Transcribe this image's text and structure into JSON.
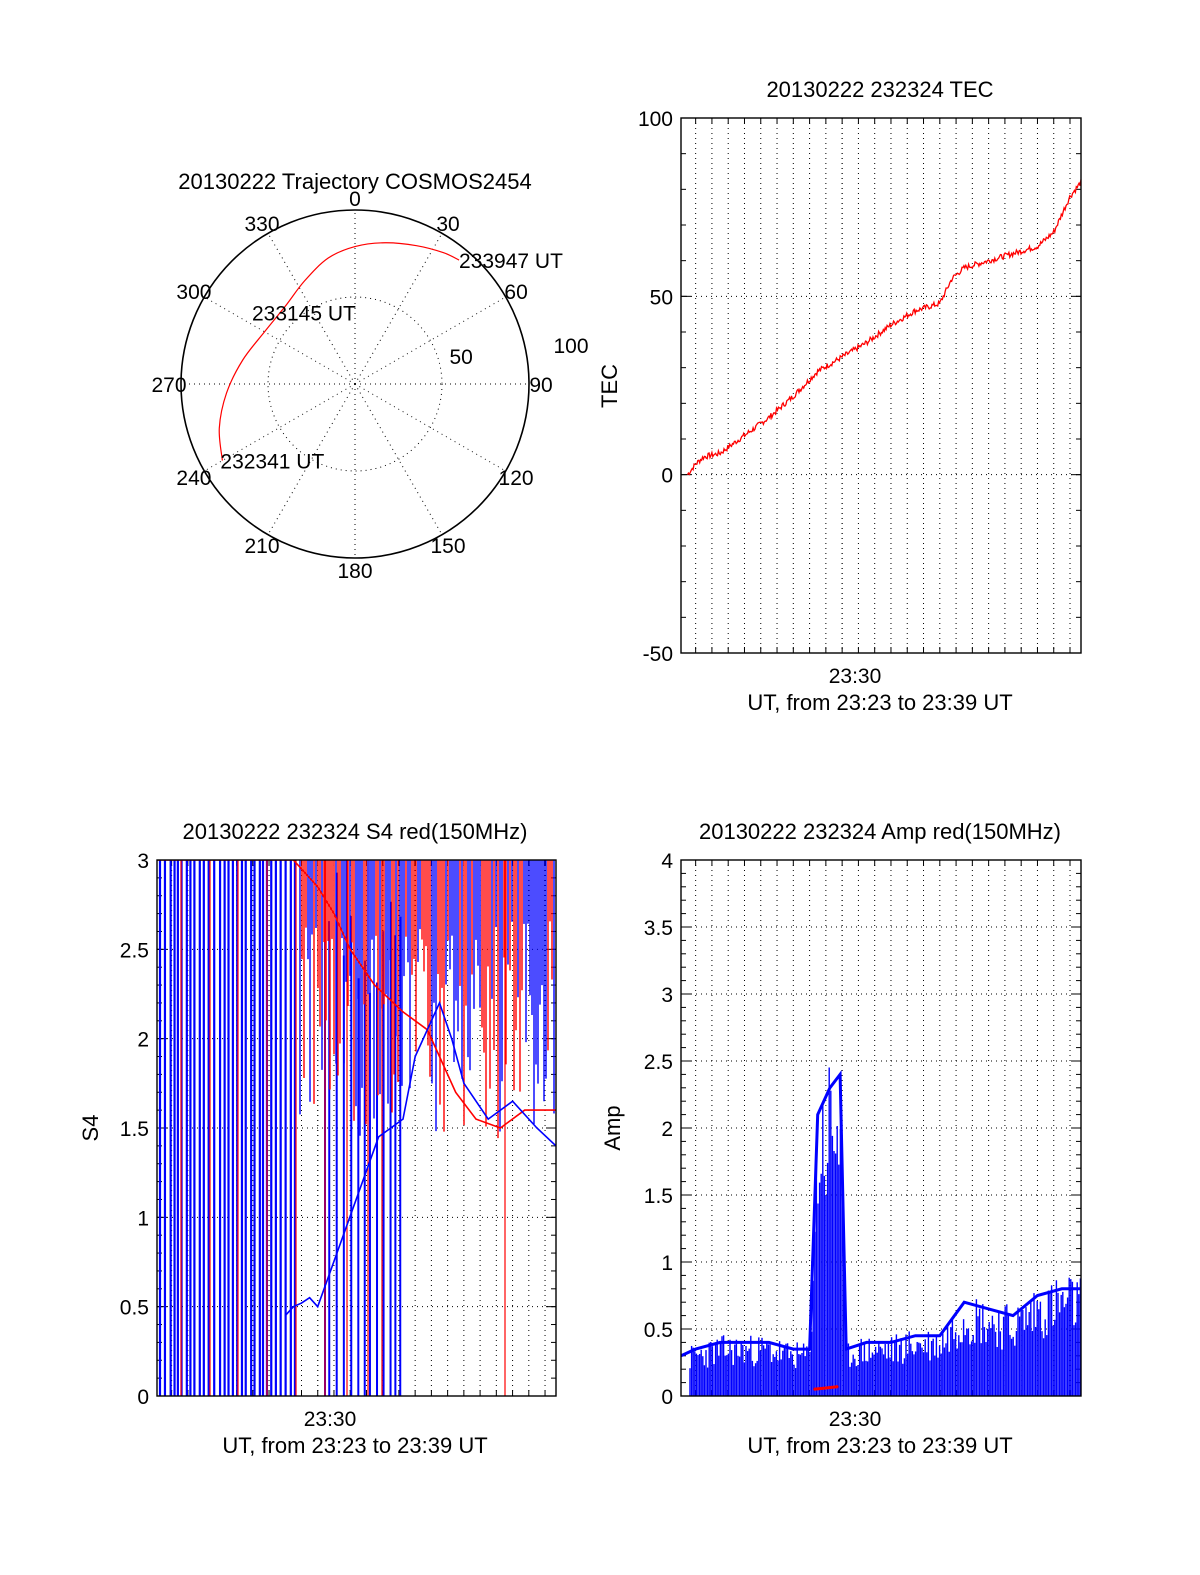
{
  "colors": {
    "red": "#ff0000",
    "blue": "#0000ff",
    "black": "#000000",
    "background": "#ffffff"
  },
  "chart_data": [
    {
      "id": "trajectory",
      "type": "polar",
      "title": "20130222 Trajectory COSMOS2454",
      "azimuth_ticks": [
        "0",
        "30",
        "60",
        "90",
        "120",
        "150",
        "180",
        "210",
        "240",
        "270",
        "300",
        "330"
      ],
      "radial_rings": [
        50,
        100
      ],
      "radial_ring_labels": [
        "50",
        "100"
      ],
      "radial_max": 100,
      "grid": true,
      "series": [
        {
          "color": "#ff0000",
          "points": [
            {
              "az": 240,
              "r": 88
            },
            {
              "az": 252,
              "r": 82
            },
            {
              "az": 266,
              "r": 74
            },
            {
              "az": 282,
              "r": 66
            },
            {
              "az": 300,
              "r": 60
            },
            {
              "az": 318,
              "r": 60
            },
            {
              "az": 334,
              "r": 66
            },
            {
              "az": 348,
              "r": 74
            },
            {
              "az": 0,
              "r": 79
            },
            {
              "az": 12,
              "r": 83
            },
            {
              "az": 24,
              "r": 87
            },
            {
              "az": 34,
              "r": 91
            },
            {
              "az": 40,
              "r": 93
            }
          ]
        }
      ],
      "annotations": [
        {
          "text": "233947 UT",
          "az": 40,
          "r": 93
        },
        {
          "text": "233145 UT",
          "az": 329,
          "r": 48
        },
        {
          "text": "232341 UT",
          "az": 240,
          "r": 88
        }
      ]
    },
    {
      "id": "tec",
      "type": "line",
      "title": "20130222 232324 TEC",
      "xlabel": "UT, from 23:23 to 23:39 UT",
      "ylabel": "TEC",
      "xlim": [
        "23:23:24",
        "23:39:47"
      ],
      "ylim": [
        -50,
        100
      ],
      "yticks": [
        "100",
        "50",
        "0",
        "-50"
      ],
      "xticks": [
        "23:30"
      ],
      "grid": true,
      "series": [
        {
          "color": "#ff0000",
          "x": [
            "23:23:40",
            "23:24:00",
            "23:24:20",
            "23:25:00",
            "23:26:00",
            "23:27:00",
            "23:28:00",
            "23:29:00",
            "23:30:00",
            "23:31:00",
            "23:32:00",
            "23:33:00",
            "23:34:00",
            "23:34:30",
            "23:35:00",
            "23:36:00",
            "23:37:00",
            "23:38:00",
            "23:38:40",
            "23:39:20",
            "23:39:47"
          ],
          "values": [
            0,
            3,
            5,
            6,
            11,
            16,
            22,
            29,
            33,
            37,
            42,
            46,
            48,
            55,
            58,
            60,
            62,
            64,
            68,
            78,
            82
          ]
        }
      ]
    },
    {
      "id": "s4",
      "type": "line",
      "title": "20130222 232324 S4 red(150MHz)",
      "xlabel": "UT, from 23:23 to 23:39 UT",
      "ylabel": "S4",
      "xlim": [
        "23:23:24",
        "23:39:47"
      ],
      "ylim": [
        0,
        3
      ],
      "yticks": [
        "3",
        "2.5",
        "2",
        "1.5",
        "1",
        "0.5",
        "0"
      ],
      "xticks": [
        "23:30"
      ],
      "grid": true,
      "series": [
        {
          "color": "#ff0000",
          "x": [
            "23:23:24",
            "23:26:00",
            "23:29:00",
            "23:30:00",
            "23:30:40",
            "23:31:20",
            "23:32:20",
            "23:33:30",
            "23:34:30",
            "23:35:00",
            "23:35:40",
            "23:36:30",
            "23:37:30",
            "23:38:30",
            "23:39:47"
          ],
          "values": [
            3,
            3,
            3,
            2.85,
            2.7,
            2.5,
            2.3,
            2.15,
            2.05,
            1.9,
            1.7,
            1.55,
            1.5,
            1.6,
            1.6
          ]
        },
        {
          "color": "#0000ff",
          "x": [
            "23:28:40",
            "23:29:00",
            "23:29:20",
            "23:29:40",
            "23:30:00",
            "23:32:30",
            "23:33:30",
            "23:34:00",
            "23:35:00",
            "23:35:30",
            "23:36:00",
            "23:37:00",
            "23:38:00",
            "23:39:00",
            "23:39:47"
          ],
          "values": [
            0.45,
            0.5,
            0.52,
            0.55,
            0.5,
            1.45,
            1.55,
            1.9,
            2.2,
            2.0,
            1.75,
            1.55,
            1.65,
            1.5,
            1.4
          ]
        }
      ]
    },
    {
      "id": "amp",
      "type": "line",
      "title": "20130222 232324 Amp red(150MHz)",
      "xlabel": "UT, from 23:23 to 23:39 UT",
      "ylabel": "Amp",
      "xlim": [
        "23:23:24",
        "23:39:47"
      ],
      "ylim": [
        0,
        4
      ],
      "yticks": [
        "4",
        "3.5",
        "3",
        "2.5",
        "2",
        "1.5",
        "1",
        "0.5",
        "0"
      ],
      "xticks": [
        "23:30"
      ],
      "grid": true,
      "series": [
        {
          "color": "#0000ff",
          "x": [
            "23:23:24",
            "23:24:00",
            "23:25:00",
            "23:26:00",
            "23:27:00",
            "23:28:00",
            "23:28:40",
            "23:29:00",
            "23:29:30",
            "23:29:55",
            "23:30:10",
            "23:31:00",
            "23:32:00",
            "23:33:00",
            "23:34:00",
            "23:35:00",
            "23:36:00",
            "23:37:00",
            "23:38:00",
            "23:39:00",
            "23:39:47"
          ],
          "values": [
            0.3,
            0.35,
            0.4,
            0.4,
            0.4,
            0.35,
            0.35,
            2.1,
            2.3,
            2.4,
            0.35,
            0.4,
            0.4,
            0.45,
            0.45,
            0.7,
            0.65,
            0.6,
            0.75,
            0.8,
            0.8
          ]
        },
        {
          "color": "#ff0000",
          "x": [
            "23:28:50",
            "23:29:20",
            "23:29:50"
          ],
          "values": [
            0.05,
            0.06,
            0.07
          ]
        }
      ]
    }
  ]
}
